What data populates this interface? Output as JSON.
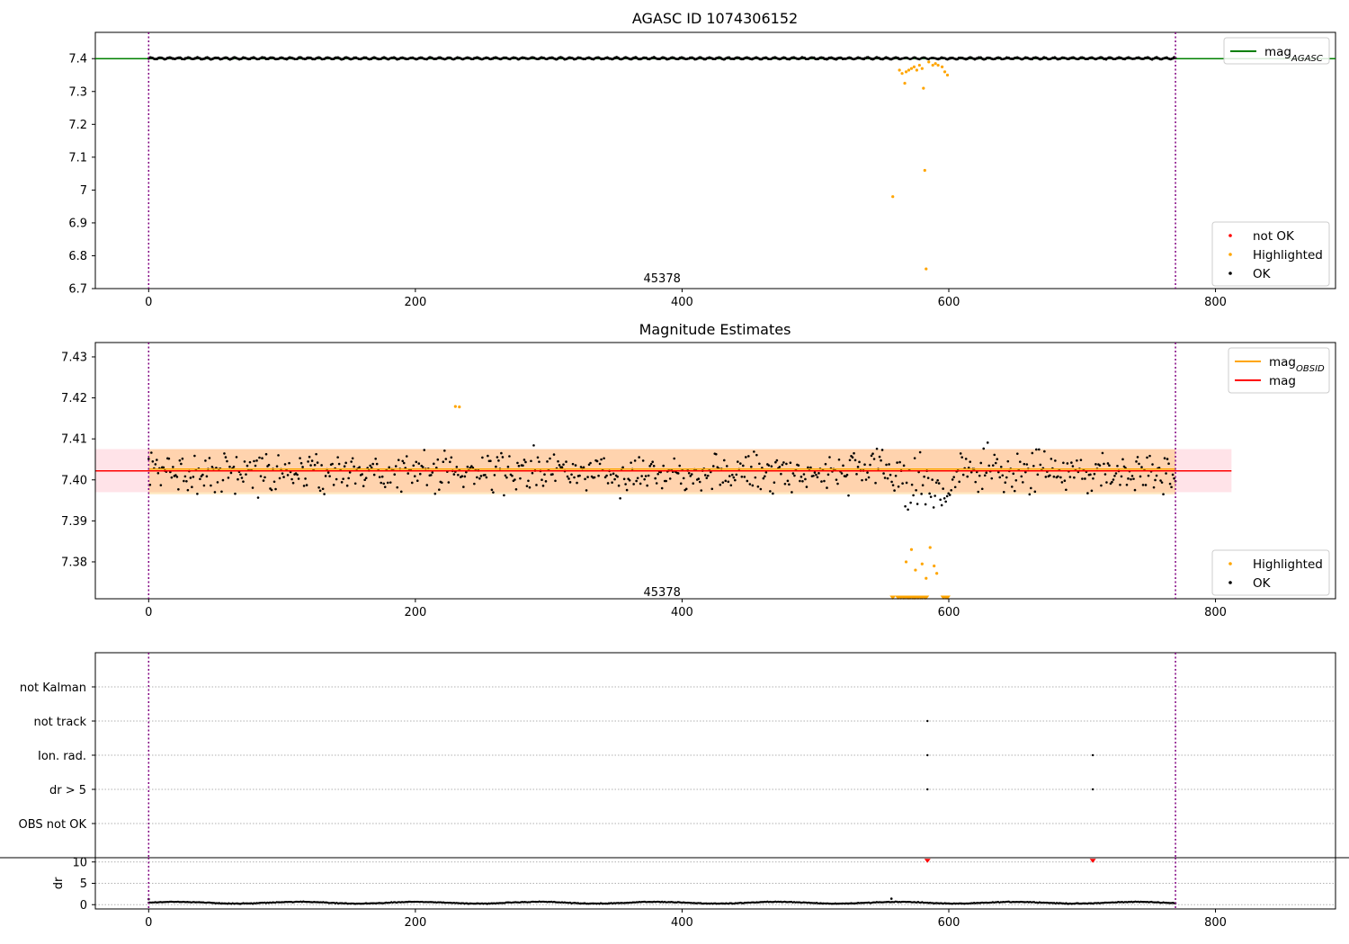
{
  "figure_title": "AGASC ID 1074306152",
  "chart_data": [
    {
      "type": "scatter",
      "title": "",
      "xlim": [
        -40,
        890
      ],
      "ylim": [
        6.7,
        7.48
      ],
      "x_ticks": [
        0,
        200,
        400,
        600,
        800
      ],
      "y_ticks": [
        6.7,
        6.8,
        6.9,
        7.0,
        7.1,
        7.2,
        7.3,
        7.4
      ],
      "vlines": [
        0,
        770
      ],
      "annotation": {
        "text": "45378",
        "x": 385,
        "y": 6.73
      },
      "series": [
        {
          "name": "mag_AGASC",
          "kind": "line",
          "color": "#008000",
          "x": [
            -40,
            890
          ],
          "y": [
            7.4,
            7.4
          ]
        },
        {
          "name": "not OK",
          "kind": "scatter",
          "color": "#ff0000",
          "x": [],
          "y": []
        },
        {
          "name": "Highlighted",
          "kind": "scatter",
          "color": "#ffa500",
          "x": [
            558,
            563,
            565,
            567,
            568,
            570,
            572,
            574,
            576,
            578,
            580,
            581,
            582,
            583,
            585,
            588,
            590,
            592,
            595,
            597,
            599
          ],
          "y": [
            6.98,
            7.365,
            7.355,
            7.325,
            7.36,
            7.365,
            7.37,
            7.375,
            7.365,
            7.38,
            7.37,
            7.31,
            7.06,
            6.76,
            7.39,
            7.38,
            7.385,
            7.38,
            7.375,
            7.36,
            7.35
          ]
        },
        {
          "name": "OK",
          "kind": "scatter",
          "color": "#000000",
          "generated": "dense",
          "x_range": [
            0,
            770
          ],
          "center": 7.401,
          "spread": 0.004
        }
      ],
      "legend": [
        {
          "label_main": "mag",
          "label_sub": "AGASC",
          "marker": "line",
          "color": "#008000"
        },
        {
          "label_main": "not OK",
          "label_sub": "",
          "marker": "dot",
          "color": "#ff0000"
        },
        {
          "label_main": "Highlighted",
          "label_sub": "",
          "marker": "dot",
          "color": "#ffa500"
        },
        {
          "label_main": "OK",
          "label_sub": "",
          "marker": "dot",
          "color": "#000000"
        }
      ]
    },
    {
      "type": "scatter",
      "title": "Magnitude Estimates",
      "xlim": [
        -40,
        890
      ],
      "ylim": [
        7.371,
        7.4335
      ],
      "x_ticks": [
        0,
        200,
        400,
        600,
        800
      ],
      "y_ticks": [
        7.38,
        7.39,
        7.4,
        7.41,
        7.42,
        7.43
      ],
      "y_tick_labels": [
        "7.38",
        "7.39",
        "7.40",
        "7.41",
        "7.42",
        "7.43"
      ],
      "vlines": [
        0,
        770
      ],
      "annotation": {
        "text": "45378",
        "x": 385,
        "y": 7.3725
      },
      "bands": [
        {
          "x": [
            -40,
            812
          ],
          "y": [
            7.397,
            7.4075
          ],
          "color": "#ffc0cb",
          "opacity": 0.45
        },
        {
          "x": [
            0,
            770
          ],
          "y": [
            7.3965,
            7.4075
          ],
          "color": "#ffa500",
          "opacity": 0.25
        }
      ],
      "series": [
        {
          "name": "mag_OBSID",
          "kind": "line",
          "color": "#ffa500",
          "x": [
            0,
            770
          ],
          "y": [
            7.4023,
            7.4023
          ]
        },
        {
          "name": "mag",
          "kind": "line",
          "color": "#ff0000",
          "x": [
            -40,
            812
          ],
          "y": [
            7.4022,
            7.4022
          ]
        },
        {
          "name": "Highlighted",
          "kind": "scatter",
          "color": "#ffa500",
          "x": [
            230,
            233,
            568,
            572,
            575,
            580,
            583,
            586,
            589,
            591
          ],
          "y": [
            7.4179,
            7.4178,
            7.38,
            7.383,
            7.378,
            7.3795,
            7.376,
            7.3835,
            7.379,
            7.3772
          ]
        },
        {
          "name": "Highlighted (clipped)",
          "kind": "triangle",
          "color": "#ffa500",
          "x": [
            558,
            562,
            564,
            566,
            567,
            569,
            570,
            571,
            573,
            574,
            575,
            577,
            579,
            580,
            582,
            583,
            596,
            598,
            599
          ],
          "y": [
            7.371,
            7.371,
            7.371,
            7.371,
            7.371,
            7.371,
            7.371,
            7.371,
            7.371,
            7.371,
            7.371,
            7.371,
            7.371,
            7.371,
            7.371,
            7.371,
            7.371,
            7.371,
            7.371
          ]
        },
        {
          "name": "OK",
          "kind": "scatter",
          "color": "#000000",
          "generated": "dense",
          "x_range": [
            0,
            770
          ],
          "center": 7.402,
          "spread": 0.0055
        }
      ],
      "legend": [
        {
          "label_main": "mag",
          "label_sub": "OBSID",
          "marker": "line",
          "color": "#ffa500"
        },
        {
          "label_main": "mag",
          "label_sub": "",
          "marker": "line",
          "color": "#ff0000"
        }
      ],
      "legend2": [
        {
          "label_main": "Highlighted",
          "label_sub": "",
          "marker": "dot",
          "color": "#ffa500"
        },
        {
          "label_main": "OK",
          "label_sub": "",
          "marker": "dot",
          "color": "#000000"
        }
      ]
    },
    {
      "type": "scatter",
      "title": "",
      "xlim": [
        -40,
        890
      ],
      "categories": [
        "not Kalman",
        "not track",
        "Ion. rad.",
        "dr > 5",
        "OBS not OK"
      ],
      "vlines": [
        0,
        770
      ],
      "flags": [
        {
          "category": "not track",
          "x": [
            584
          ]
        },
        {
          "category": "Ion. rad.",
          "x": [
            584,
            708
          ]
        },
        {
          "category": "dr > 5",
          "x": [
            584,
            708
          ]
        }
      ]
    },
    {
      "type": "scatter",
      "title": "",
      "xlim": [
        -40,
        890
      ],
      "ylim": [
        -1,
        11
      ],
      "x_ticks": [
        0,
        200,
        400,
        600,
        800
      ],
      "y_ticks": [
        0,
        5,
        10
      ],
      "ylabel": "dr",
      "vlines": [
        0,
        770
      ],
      "series": [
        {
          "name": "dr",
          "kind": "scatter",
          "color": "#000000",
          "generated": "dense",
          "x_range": [
            0,
            770
          ],
          "center": 0.45,
          "spread": 0.25
        },
        {
          "name": "dr outliers",
          "kind": "triangle",
          "color": "#ff0000",
          "x": [
            584,
            708
          ],
          "y": [
            10,
            10
          ]
        },
        {
          "name": "dr spikes",
          "kind": "scatter",
          "color": "#000000",
          "x": [
            0,
            557
          ],
          "y": [
            1.3,
            1.4
          ]
        }
      ]
    }
  ]
}
